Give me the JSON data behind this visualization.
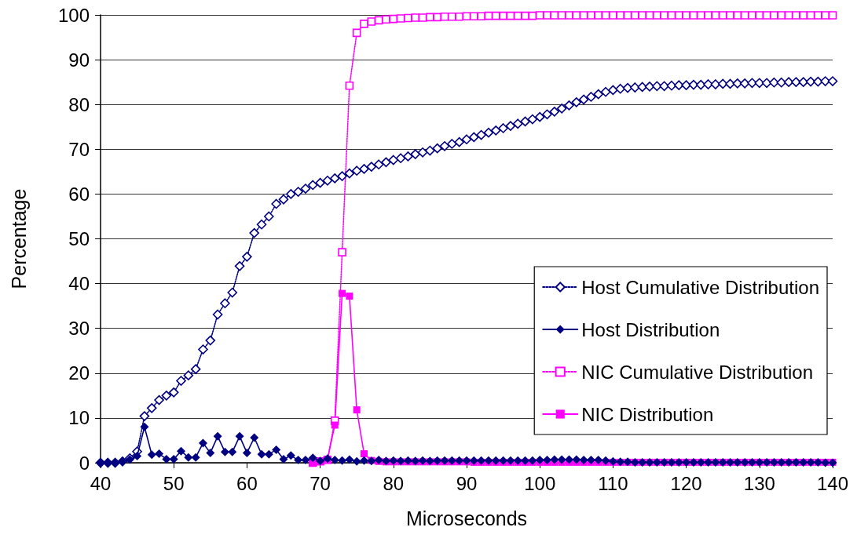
{
  "chart_data": {
    "type": "line",
    "xlabel": "Microseconds",
    "ylabel": "Percentage",
    "xlim": [
      40,
      140
    ],
    "xticks": [
      40,
      50,
      60,
      70,
      80,
      90,
      100,
      110,
      120,
      130,
      140
    ],
    "ylim": [
      0,
      100
    ],
    "yticks": [
      0,
      10,
      20,
      30,
      40,
      50,
      60,
      70,
      80,
      90,
      100
    ],
    "grid": "y",
    "legend": "right",
    "series": [
      {
        "name": "Host Cumulative Distribution",
        "color": "#000080",
        "marker": "diamond",
        "line_style": "dotted",
        "x": [
          40,
          41,
          42,
          43,
          44,
          45,
          46,
          47,
          48,
          49,
          50,
          51,
          52,
          53,
          54,
          55,
          56,
          57,
          58,
          59,
          60,
          61,
          62,
          63,
          64,
          65,
          66,
          67,
          68,
          69,
          70,
          71,
          72,
          73,
          74,
          75,
          76,
          77,
          78,
          79,
          80,
          81,
          82,
          83,
          84,
          85,
          86,
          87,
          88,
          89,
          90,
          91,
          92,
          93,
          94,
          95,
          96,
          97,
          98,
          99,
          100,
          101,
          102,
          103,
          104,
          105,
          106,
          107,
          108,
          109,
          110,
          111,
          112,
          113,
          114,
          115,
          116,
          117,
          118,
          119,
          120,
          121,
          122,
          123,
          124,
          125,
          126,
          127,
          128,
          129,
          130,
          131,
          132,
          133,
          134,
          135,
          136,
          137,
          138,
          139,
          140
        ],
        "values": [
          0,
          0,
          0,
          0.3,
          1,
          2.5,
          10.4,
          12.2,
          14,
          15,
          15.7,
          18.3,
          19.5,
          20.9,
          25.3,
          27.3,
          33.1,
          35.6,
          38,
          43.9,
          46,
          51.3,
          53.2,
          55,
          57.8,
          58.8,
          60,
          60.5,
          61.2,
          62,
          62.5,
          63,
          63.5,
          64,
          64.6,
          65.2,
          65.6,
          66.1,
          66.6,
          67.1,
          67.6,
          68,
          68.4,
          68.9,
          69.3,
          69.7,
          70.2,
          70.7,
          71.2,
          71.6,
          72.2,
          72.7,
          73.2,
          73.7,
          74.2,
          74.7,
          75.2,
          75.7,
          76.2,
          76.7,
          77.2,
          77.8,
          78.4,
          79.1,
          79.8,
          80.5,
          81.1,
          81.7,
          82.3,
          82.8,
          83.2,
          83.5,
          83.7,
          83.8,
          83.9,
          84,
          84.1,
          84.1,
          84.2,
          84.3,
          84.3,
          84.4,
          84.4,
          84.5,
          84.5,
          84.6,
          84.6,
          84.7,
          84.7,
          84.8,
          84.8,
          84.8,
          84.9,
          84.9,
          85,
          85,
          85,
          85.1,
          85.1,
          85.2,
          85.2
        ]
      },
      {
        "name": "Host Distribution",
        "color": "#000080",
        "marker": "diamond",
        "line_style": "solid",
        "x": [
          40,
          41,
          42,
          43,
          44,
          45,
          46,
          47,
          48,
          49,
          50,
          51,
          52,
          53,
          54,
          55,
          56,
          57,
          58,
          59,
          60,
          61,
          62,
          63,
          64,
          65,
          66,
          67,
          68,
          69,
          70,
          71,
          72,
          73,
          74,
          75,
          76,
          77,
          78,
          79,
          80,
          81,
          82,
          83,
          84,
          85,
          86,
          87,
          88,
          89,
          90,
          91,
          92,
          93,
          94,
          95,
          96,
          97,
          98,
          99,
          100,
          101,
          102,
          103,
          104,
          105,
          106,
          107,
          108,
          109,
          110,
          111,
          112,
          113,
          114,
          115,
          116,
          117,
          118,
          119,
          120,
          121,
          122,
          123,
          124,
          125,
          126,
          127,
          128,
          129,
          130,
          131,
          132,
          133,
          134,
          135,
          136,
          137,
          138,
          139,
          140
        ],
        "values": [
          0,
          0,
          0,
          0.3,
          0.7,
          1.5,
          8,
          1.8,
          2,
          0.8,
          0.8,
          2.6,
          1.2,
          1.2,
          4.4,
          2.2,
          5.9,
          2.4,
          2.4,
          5.9,
          2.2,
          5.6,
          1.9,
          1.9,
          2.9,
          0.8,
          1.6,
          0.6,
          0.6,
          1.1,
          0.4,
          0.9,
          0.6,
          0.5,
          0.7,
          0.3,
          0.5,
          0.4,
          0.6,
          0.4,
          0.5,
          0.4,
          0.5,
          0.4,
          0.5,
          0.4,
          0.5,
          0.5,
          0.5,
          0.5,
          0.5,
          0.5,
          0.5,
          0.5,
          0.5,
          0.5,
          0.5,
          0.5,
          0.5,
          0.5,
          0.6,
          0.6,
          0.7,
          0.7,
          0.7,
          0.7,
          0.6,
          0.6,
          0.6,
          0.5,
          0.3,
          0.2,
          0.2,
          0.1,
          0.1,
          0.1,
          0.1,
          0.1,
          0.1,
          0.1,
          0.1,
          0.1,
          0.1,
          0.1,
          0.1,
          0.1,
          0.1,
          0.1,
          0.1,
          0.1,
          0.1,
          0.1,
          0.1,
          0.1,
          0.1,
          0.1,
          0.1,
          0.1,
          0.1,
          0,
          0
        ]
      },
      {
        "name": "NIC Cumulative Distribution",
        "color": "#ff00ff",
        "marker": "square",
        "line_style": "dotted",
        "x": [
          69,
          70,
          71,
          72,
          73,
          74,
          75,
          76,
          77,
          78,
          79,
          80,
          81,
          82,
          83,
          84,
          85,
          86,
          87,
          88,
          89,
          90,
          91,
          92,
          93,
          94,
          95,
          96,
          97,
          98,
          99,
          100,
          101,
          102,
          103,
          104,
          105,
          106,
          107,
          108,
          109,
          110,
          111,
          112,
          113,
          114,
          115,
          116,
          117,
          118,
          119,
          120,
          121,
          122,
          123,
          124,
          125,
          126,
          127,
          128,
          129,
          130,
          131,
          132,
          133,
          134,
          135,
          136,
          137,
          138,
          139,
          140
        ],
        "values": [
          0,
          0.3,
          0.6,
          9.4,
          47,
          84.2,
          96,
          98,
          98.5,
          98.8,
          99,
          99.1,
          99.2,
          99.3,
          99.4,
          99.4,
          99.5,
          99.5,
          99.6,
          99.6,
          99.6,
          99.7,
          99.7,
          99.7,
          99.8,
          99.8,
          99.8,
          99.8,
          99.8,
          99.8,
          99.8,
          99.9,
          99.9,
          99.9,
          99.9,
          99.9,
          99.9,
          99.9,
          99.9,
          99.9,
          99.9,
          99.9,
          99.9,
          99.9,
          99.9,
          99.9,
          99.9,
          99.9,
          99.9,
          99.9,
          99.9,
          99.9,
          99.9,
          99.9,
          99.9,
          99.9,
          99.9,
          99.9,
          99.9,
          99.9,
          99.9,
          99.9,
          99.9,
          99.9,
          99.9,
          99.9,
          99.9,
          99.9,
          99.9,
          99.9,
          99.9,
          99.9
        ]
      },
      {
        "name": "NIC Distribution",
        "color": "#ff00ff",
        "marker": "square",
        "line_style": "solid",
        "x": [
          69,
          70,
          71,
          72,
          73,
          74,
          75,
          76,
          77,
          78,
          79,
          80,
          81,
          82,
          83,
          84,
          85,
          86,
          87,
          88,
          89,
          90,
          91,
          92,
          93,
          94,
          95,
          96,
          97,
          98,
          99,
          100,
          101,
          102,
          103,
          104,
          105,
          106,
          107,
          108,
          109,
          110,
          111,
          112,
          113,
          114,
          115,
          116,
          117,
          118,
          119,
          120,
          121,
          122,
          123,
          124,
          125,
          126,
          127,
          128,
          129,
          130,
          131,
          132,
          133,
          134,
          135,
          136,
          137,
          138,
          139,
          140
        ],
        "values": [
          0,
          0.3,
          0.8,
          8.4,
          37.8,
          37.2,
          11.8,
          2,
          0.5,
          0.3,
          0.2,
          0.2,
          0.2,
          0.2,
          0.2,
          0.2,
          0.2,
          0.2,
          0.2,
          0.2,
          0.2,
          0.2,
          0.1,
          0.1,
          0.1,
          0.1,
          0.1,
          0.1,
          0.1,
          0.1,
          0.1,
          0.1,
          0.1,
          0.1,
          0.1,
          0.1,
          0.1,
          0.1,
          0.1,
          0.1,
          0.1,
          0.1,
          0.1,
          0.1,
          0.1,
          0.1,
          0.1,
          0.1,
          0.1,
          0.1,
          0.1,
          0.1,
          0.1,
          0.1,
          0.1,
          0.1,
          0.1,
          0.1,
          0.1,
          0.1,
          0.1,
          0.1,
          0.1,
          0.1,
          0.1,
          0.1,
          0.1,
          0.1,
          0.1,
          0.1,
          0.1,
          0.1
        ]
      }
    ]
  }
}
